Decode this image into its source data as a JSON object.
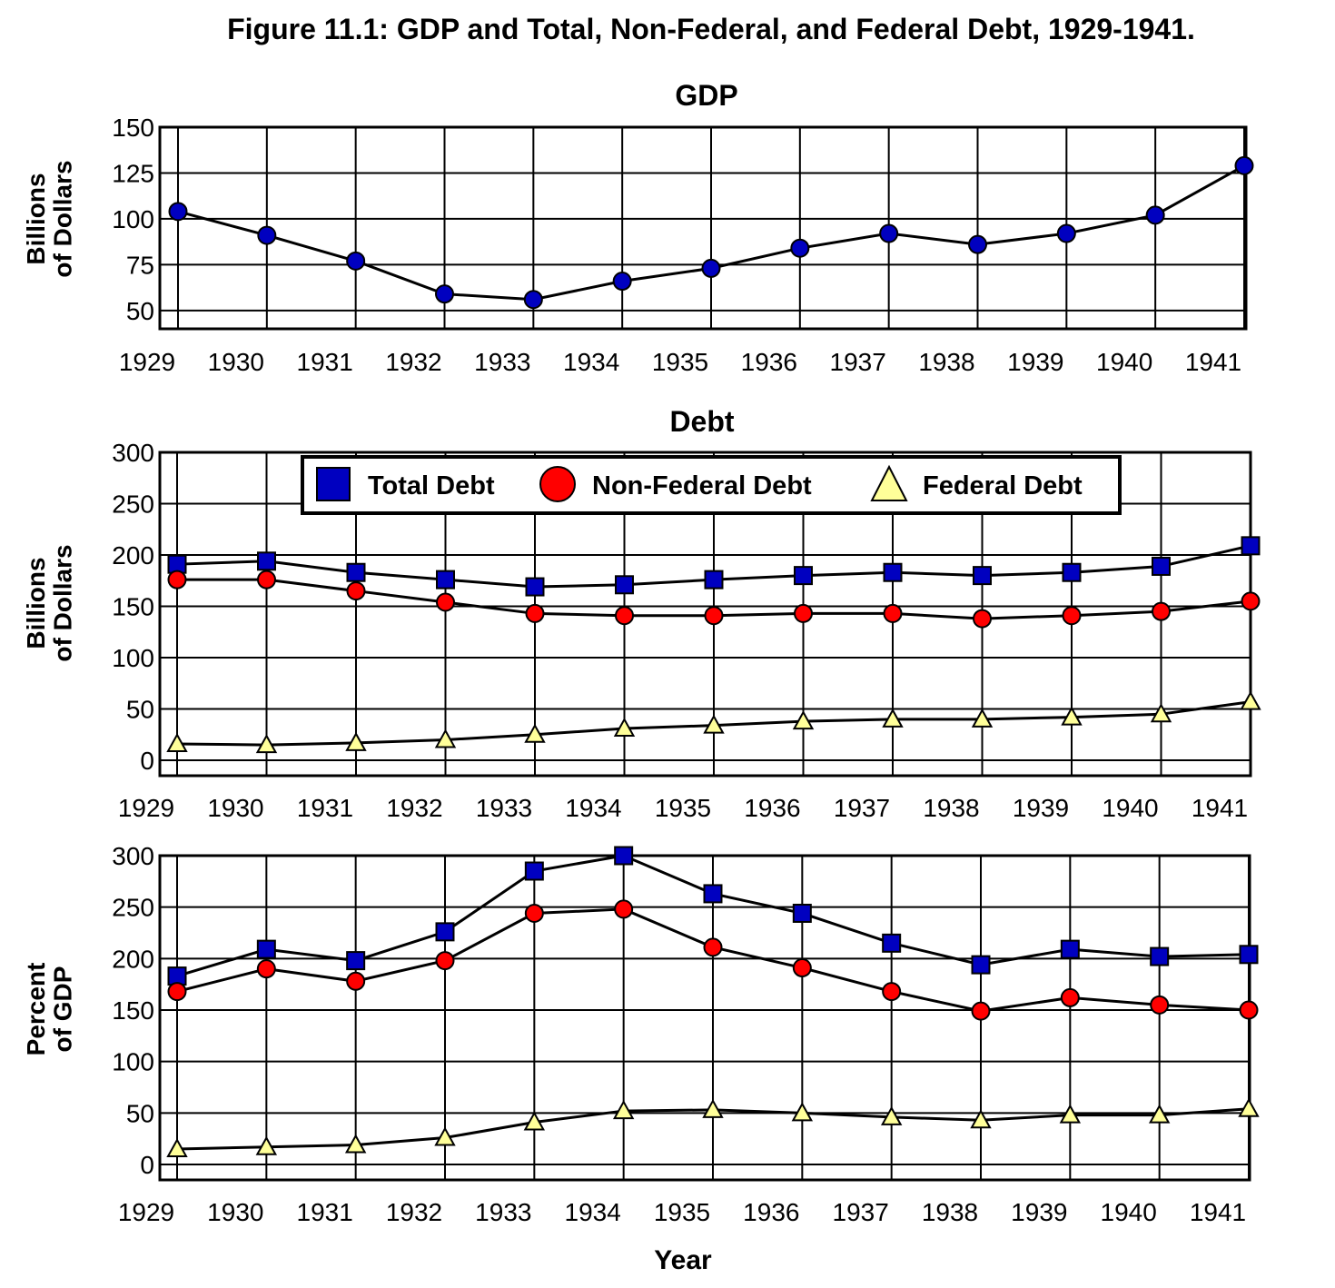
{
  "figure_title": "Figure 11.1: GDP and Total, Non-Federal, and Federal Debt, 1929-1941.",
  "x_axis_label": "Year",
  "colors": {
    "total": "#0000c0",
    "nonfederal": "#ff0000",
    "federal": "#ffff99",
    "gdp": "#0000c0",
    "grid": "#000000"
  },
  "chart_data": [
    {
      "type": "line",
      "title": "GDP",
      "xlabel": "",
      "ylabel": "Billions of Dollars",
      "x": [
        1929,
        1930,
        1931,
        1932,
        1933,
        1934,
        1935,
        1936,
        1937,
        1938,
        1939,
        1940,
        1941
      ],
      "ylim": [
        40,
        150
      ],
      "yticks": [
        50,
        75,
        100,
        125,
        150
      ],
      "grid": true,
      "series": [
        {
          "name": "",
          "marker": "circle",
          "color": "#0000c0",
          "values": [
            104,
            91,
            77,
            59,
            56,
            66,
            73,
            84,
            92,
            86,
            92,
            102,
            129
          ]
        }
      ]
    },
    {
      "type": "line",
      "title": "Debt",
      "xlabel": "",
      "ylabel": "Billions of Dollars",
      "x": [
        1929,
        1930,
        1931,
        1932,
        1933,
        1934,
        1935,
        1936,
        1937,
        1938,
        1939,
        1940,
        1941
      ],
      "ylim": [
        -15,
        300
      ],
      "yticks": [
        0,
        50,
        100,
        150,
        200,
        250,
        300
      ],
      "grid": true,
      "legend": "top",
      "series": [
        {
          "name": "Total Debt",
          "marker": "square",
          "color": "#0000c0",
          "values": [
            191,
            194,
            183,
            176,
            169,
            171,
            176,
            180,
            183,
            180,
            183,
            189,
            209
          ]
        },
        {
          "name": "Non-Federal Debt",
          "marker": "circle",
          "color": "#ff0000",
          "values": [
            176,
            176,
            165,
            154,
            143,
            141,
            141,
            143,
            143,
            138,
            141,
            145,
            155
          ]
        },
        {
          "name": "Federal Debt",
          "marker": "triangle",
          "color": "#ffff99",
          "values": [
            16,
            15,
            17,
            20,
            25,
            31,
            34,
            38,
            40,
            40,
            42,
            45,
            57
          ]
        }
      ]
    },
    {
      "type": "line",
      "title": "",
      "xlabel": "Year",
      "ylabel": "Percent of GDP",
      "x": [
        1929,
        1930,
        1931,
        1932,
        1933,
        1934,
        1935,
        1936,
        1937,
        1938,
        1939,
        1940,
        1941
      ],
      "ylim": [
        -15,
        300
      ],
      "yticks": [
        0,
        50,
        100,
        150,
        200,
        250,
        300
      ],
      "grid": true,
      "series": [
        {
          "name": "Total Debt",
          "marker": "square",
          "color": "#0000c0",
          "values": [
            183,
            209,
            198,
            226,
            285,
            300,
            263,
            244,
            215,
            194,
            209,
            202,
            204
          ]
        },
        {
          "name": "Non-Federal Debt",
          "marker": "circle",
          "color": "#ff0000",
          "values": [
            168,
            190,
            178,
            198,
            244,
            248,
            211,
            191,
            168,
            149,
            162,
            155,
            150
          ]
        },
        {
          "name": "Federal Debt",
          "marker": "triangle",
          "color": "#ffff99",
          "values": [
            15,
            17,
            19,
            26,
            41,
            52,
            53,
            50,
            46,
            43,
            48,
            48,
            54
          ]
        }
      ]
    }
  ]
}
